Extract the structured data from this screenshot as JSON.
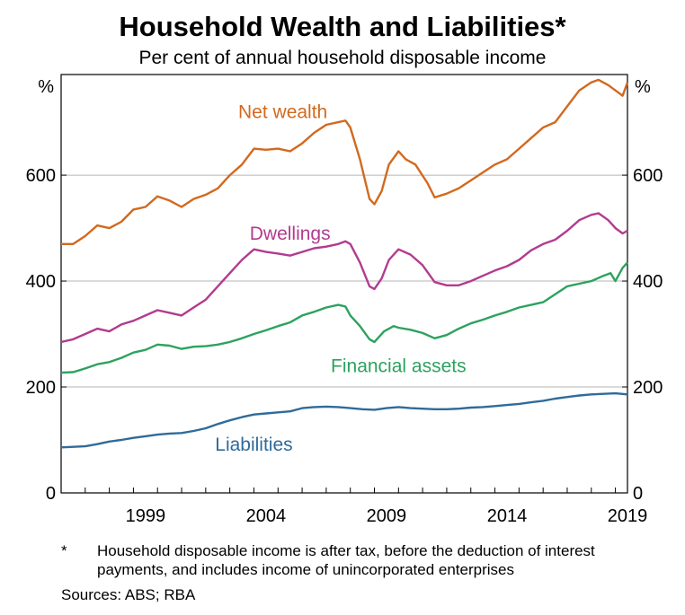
{
  "title": "Household Wealth and Liabilities*",
  "subtitle": "Per cent of annual household disposable income",
  "footnote_marker": "*",
  "footnote": "Household disposable income is after tax, before the deduction of interest payments, and includes income of unincorporated enterprises",
  "sources": "Sources: ABS; RBA",
  "chart_data": {
    "type": "line",
    "title": "Household Wealth and Liabilities*",
    "subtitle": "Per cent of annual household disposable income",
    "ylabel_left": "%",
    "ylabel_right": "%",
    "xlim": [
      1996.0,
      2019.5
    ],
    "ylim": [
      0,
      790
    ],
    "yticks": [
      0,
      200,
      400,
      600
    ],
    "ytick_labels": [
      "0",
      "200",
      "400",
      "600"
    ],
    "xticks": [
      1999,
      2004,
      2009,
      2014,
      2019
    ],
    "xtick_labels": [
      "1999",
      "2004",
      "2009",
      "2014",
      "2019"
    ],
    "grid": true,
    "legend": "inline labels",
    "series": [
      {
        "name": "Net wealth",
        "color": "#d2691e",
        "points": [
          [
            1996.0,
            470
          ],
          [
            1996.5,
            470
          ],
          [
            1997.0,
            485
          ],
          [
            1997.5,
            505
          ],
          [
            1998.0,
            500
          ],
          [
            1998.5,
            512
          ],
          [
            1999.0,
            535
          ],
          [
            1999.5,
            540
          ],
          [
            2000.0,
            560
          ],
          [
            2000.5,
            552
          ],
          [
            2001.0,
            540
          ],
          [
            2001.5,
            555
          ],
          [
            2002.0,
            563
          ],
          [
            2002.5,
            575
          ],
          [
            2003.0,
            600
          ],
          [
            2003.5,
            620
          ],
          [
            2004.0,
            650
          ],
          [
            2004.5,
            648
          ],
          [
            2005.0,
            650
          ],
          [
            2005.5,
            645
          ],
          [
            2006.0,
            660
          ],
          [
            2006.5,
            680
          ],
          [
            2007.0,
            695
          ],
          [
            2007.5,
            700
          ],
          [
            2007.8,
            703
          ],
          [
            2008.0,
            690
          ],
          [
            2008.4,
            630
          ],
          [
            2008.8,
            555
          ],
          [
            2009.0,
            545
          ],
          [
            2009.3,
            570
          ],
          [
            2009.6,
            620
          ],
          [
            2010.0,
            645
          ],
          [
            2010.3,
            630
          ],
          [
            2010.7,
            620
          ],
          [
            2011.2,
            585
          ],
          [
            2011.5,
            558
          ],
          [
            2012.0,
            565
          ],
          [
            2012.5,
            575
          ],
          [
            2013.0,
            590
          ],
          [
            2013.5,
            605
          ],
          [
            2014.0,
            620
          ],
          [
            2014.5,
            630
          ],
          [
            2015.0,
            650
          ],
          [
            2015.5,
            670
          ],
          [
            2016.0,
            690
          ],
          [
            2016.5,
            700
          ],
          [
            2017.0,
            730
          ],
          [
            2017.5,
            760
          ],
          [
            2018.0,
            775
          ],
          [
            2018.3,
            780
          ],
          [
            2018.7,
            770
          ],
          [
            2019.0,
            760
          ],
          [
            2019.3,
            750
          ],
          [
            2019.5,
            775
          ]
        ]
      },
      {
        "name": "Dwellings",
        "color": "#b23b8f",
        "points": [
          [
            1996.0,
            285
          ],
          [
            1996.5,
            290
          ],
          [
            1997.0,
            300
          ],
          [
            1997.5,
            310
          ],
          [
            1998.0,
            305
          ],
          [
            1998.5,
            318
          ],
          [
            1999.0,
            325
          ],
          [
            1999.5,
            335
          ],
          [
            2000.0,
            345
          ],
          [
            2000.5,
            340
          ],
          [
            2001.0,
            335
          ],
          [
            2001.5,
            350
          ],
          [
            2002.0,
            365
          ],
          [
            2002.5,
            390
          ],
          [
            2003.0,
            415
          ],
          [
            2003.5,
            440
          ],
          [
            2004.0,
            460
          ],
          [
            2004.5,
            455
          ],
          [
            2005.0,
            452
          ],
          [
            2005.5,
            448
          ],
          [
            2006.0,
            455
          ],
          [
            2006.5,
            462
          ],
          [
            2007.0,
            465
          ],
          [
            2007.5,
            470
          ],
          [
            2007.8,
            475
          ],
          [
            2008.0,
            470
          ],
          [
            2008.4,
            435
          ],
          [
            2008.8,
            390
          ],
          [
            2009.0,
            385
          ],
          [
            2009.3,
            405
          ],
          [
            2009.6,
            440
          ],
          [
            2010.0,
            460
          ],
          [
            2010.5,
            450
          ],
          [
            2011.0,
            430
          ],
          [
            2011.5,
            398
          ],
          [
            2012.0,
            392
          ],
          [
            2012.5,
            392
          ],
          [
            2013.0,
            400
          ],
          [
            2013.5,
            410
          ],
          [
            2014.0,
            420
          ],
          [
            2014.5,
            428
          ],
          [
            2015.0,
            440
          ],
          [
            2015.5,
            458
          ],
          [
            2016.0,
            470
          ],
          [
            2016.5,
            478
          ],
          [
            2017.0,
            495
          ],
          [
            2017.5,
            515
          ],
          [
            2018.0,
            525
          ],
          [
            2018.3,
            528
          ],
          [
            2018.7,
            515
          ],
          [
            2019.0,
            500
          ],
          [
            2019.3,
            490
          ],
          [
            2019.5,
            495
          ]
        ]
      },
      {
        "name": "Financial assets",
        "color": "#2ca25f",
        "points": [
          [
            1996.0,
            227
          ],
          [
            1996.5,
            228
          ],
          [
            1997.0,
            235
          ],
          [
            1997.5,
            243
          ],
          [
            1998.0,
            247
          ],
          [
            1998.5,
            255
          ],
          [
            1999.0,
            265
          ],
          [
            1999.5,
            270
          ],
          [
            2000.0,
            280
          ],
          [
            2000.5,
            278
          ],
          [
            2001.0,
            272
          ],
          [
            2001.5,
            276
          ],
          [
            2002.0,
            277
          ],
          [
            2002.5,
            280
          ],
          [
            2003.0,
            285
          ],
          [
            2003.5,
            292
          ],
          [
            2004.0,
            300
          ],
          [
            2004.5,
            307
          ],
          [
            2005.0,
            315
          ],
          [
            2005.5,
            322
          ],
          [
            2006.0,
            335
          ],
          [
            2006.5,
            342
          ],
          [
            2007.0,
            350
          ],
          [
            2007.5,
            355
          ],
          [
            2007.8,
            352
          ],
          [
            2008.0,
            335
          ],
          [
            2008.4,
            315
          ],
          [
            2008.8,
            290
          ],
          [
            2009.0,
            285
          ],
          [
            2009.4,
            305
          ],
          [
            2009.8,
            315
          ],
          [
            2010.0,
            312
          ],
          [
            2010.5,
            308
          ],
          [
            2011.0,
            302
          ],
          [
            2011.5,
            292
          ],
          [
            2012.0,
            298
          ],
          [
            2012.5,
            310
          ],
          [
            2013.0,
            320
          ],
          [
            2013.5,
            327
          ],
          [
            2014.0,
            335
          ],
          [
            2014.5,
            342
          ],
          [
            2015.0,
            350
          ],
          [
            2015.5,
            355
          ],
          [
            2016.0,
            360
          ],
          [
            2016.5,
            375
          ],
          [
            2017.0,
            390
          ],
          [
            2017.5,
            395
          ],
          [
            2018.0,
            400
          ],
          [
            2018.5,
            410
          ],
          [
            2018.8,
            415
          ],
          [
            2019.0,
            400
          ],
          [
            2019.3,
            425
          ],
          [
            2019.5,
            435
          ]
        ]
      },
      {
        "name": "Liabilities",
        "color": "#2f6b9a",
        "points": [
          [
            1996.0,
            86
          ],
          [
            1996.5,
            87
          ],
          [
            1997.0,
            88
          ],
          [
            1997.5,
            92
          ],
          [
            1998.0,
            97
          ],
          [
            1998.5,
            100
          ],
          [
            1999.0,
            104
          ],
          [
            1999.5,
            107
          ],
          [
            2000.0,
            110
          ],
          [
            2000.5,
            112
          ],
          [
            2001.0,
            113
          ],
          [
            2001.5,
            117
          ],
          [
            2002.0,
            122
          ],
          [
            2002.5,
            130
          ],
          [
            2003.0,
            137
          ],
          [
            2003.5,
            143
          ],
          [
            2004.0,
            148
          ],
          [
            2004.5,
            150
          ],
          [
            2005.0,
            152
          ],
          [
            2005.5,
            154
          ],
          [
            2006.0,
            160
          ],
          [
            2006.5,
            162
          ],
          [
            2007.0,
            163
          ],
          [
            2007.5,
            162
          ],
          [
            2008.0,
            160
          ],
          [
            2008.5,
            158
          ],
          [
            2009.0,
            157
          ],
          [
            2009.5,
            160
          ],
          [
            2010.0,
            162
          ],
          [
            2010.5,
            160
          ],
          [
            2011.0,
            159
          ],
          [
            2011.5,
            158
          ],
          [
            2012.0,
            158
          ],
          [
            2012.5,
            159
          ],
          [
            2013.0,
            161
          ],
          [
            2013.5,
            162
          ],
          [
            2014.0,
            164
          ],
          [
            2014.5,
            166
          ],
          [
            2015.0,
            168
          ],
          [
            2015.5,
            171
          ],
          [
            2016.0,
            174
          ],
          [
            2016.5,
            178
          ],
          [
            2017.0,
            181
          ],
          [
            2017.5,
            184
          ],
          [
            2018.0,
            186
          ],
          [
            2018.5,
            187
          ],
          [
            2019.0,
            188
          ],
          [
            2019.5,
            186
          ]
        ]
      }
    ],
    "annotations": [
      {
        "text": "Net wealth",
        "series": "Net wealth",
        "x": 2005.2,
        "y": 708
      },
      {
        "text": "Dwellings",
        "series": "Dwellings",
        "x": 2005.5,
        "y": 478
      },
      {
        "text": "Financial assets",
        "series": "Financial assets",
        "x": 2010.0,
        "y": 228
      },
      {
        "text": "Liabilities",
        "series": "Liabilities",
        "x": 2004.0,
        "y": 80
      }
    ]
  }
}
